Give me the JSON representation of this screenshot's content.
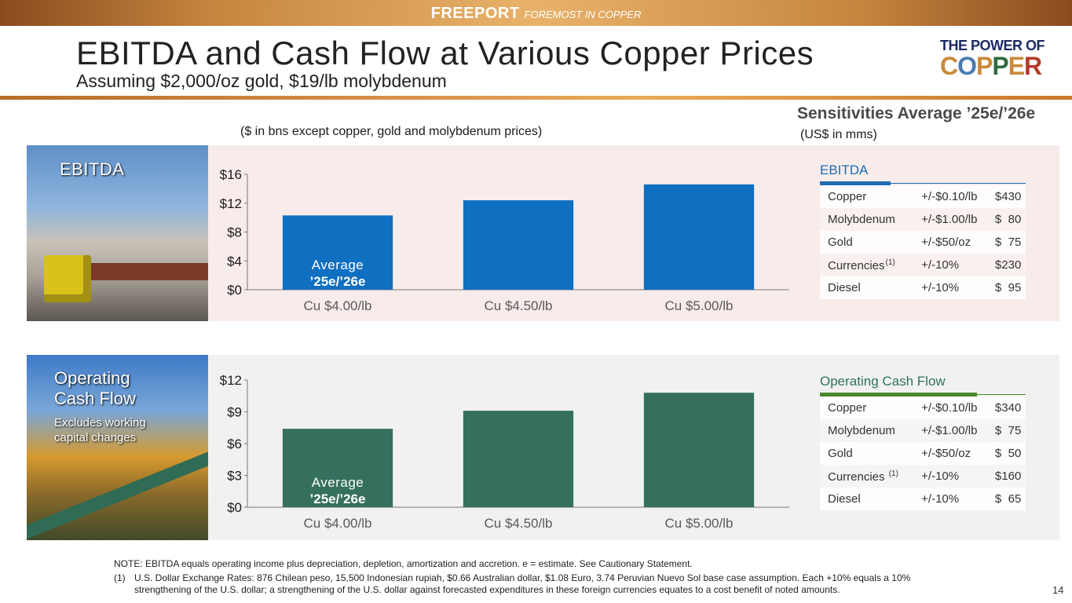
{
  "header": {
    "brand_name": "FREEPORT",
    "brand_tagline": "FOREMOST IN COPPER",
    "title": "EBITDA and Cash Flow at Various Copper Prices",
    "subtitle": "Assuming $2,000/oz gold, $19/lb molybdenum",
    "logo_line1": "THE POWER OF",
    "logo_line2": "COPPER"
  },
  "chart_note": "($ in bns except copper, gold and molybdenum prices)",
  "sensitivities": {
    "title": "Sensitivities Average ’25e/’26e",
    "unit": "(US$ in mms)",
    "ebitda": {
      "heading": "EBITDA",
      "rows": [
        {
          "item": "Copper",
          "change": "+/-$0.10/lb",
          "value": "$430"
        },
        {
          "item": "Molybdenum",
          "change": "+/-$1.00/lb",
          "value": "$  80"
        },
        {
          "item": "Gold",
          "change": "+/-$50/oz",
          "value": "$  75"
        },
        {
          "item": "Currencies",
          "sup": "(1)",
          "change": "+/-10%",
          "value": "$230"
        },
        {
          "item": "Diesel",
          "change": "+/-10%",
          "value": "$  95"
        }
      ]
    },
    "ocf": {
      "heading": "Operating Cash Flow",
      "rows": [
        {
          "item": "Copper",
          "change": "+/-$0.10/lb",
          "value": "$340"
        },
        {
          "item": "Molybdenum",
          "change": "+/-$1.00/lb",
          "value": "$  75"
        },
        {
          "item": "Gold",
          "change": "+/-$50/oz",
          "value": "$  50"
        },
        {
          "item": "Currencies ",
          "sup": "(1)",
          "change": "+/-10%",
          "value": "$160"
        },
        {
          "item": "Diesel",
          "change": "+/-10%",
          "value": "$  65"
        }
      ]
    }
  },
  "panels": {
    "ebitda_label": "EBITDA",
    "ocf_label_line1": "Operating",
    "ocf_label_line2": "Cash Flow",
    "ocf_sub_line1": "Excludes working",
    "ocf_sub_line2": "capital changes"
  },
  "chart_data": [
    {
      "type": "bar",
      "categories": [
        "Cu $4.00/lb",
        "Cu $4.50/lb",
        "Cu $5.00/lb"
      ],
      "values": [
        10.3,
        12.4,
        14.6
      ],
      "ylim": [
        0,
        16
      ],
      "yticks": [
        0,
        4,
        8,
        12,
        16
      ],
      "ytick_labels": [
        "$0",
        "$4",
        "$8",
        "$12",
        "$16"
      ],
      "bar_color": "#0f6fc1",
      "annotation_line1": "Average",
      "annotation_line2": "’25e/’26e"
    },
    {
      "type": "bar",
      "categories": [
        "Cu $4.00/lb",
        "Cu $4.50/lb",
        "Cu $5.00/lb"
      ],
      "values": [
        7.4,
        9.1,
        10.8
      ],
      "ylim": [
        0,
        12
      ],
      "yticks": [
        0,
        3,
        6,
        9,
        12
      ],
      "ytick_labels": [
        "$0",
        "$3",
        "$6",
        "$9",
        "$12"
      ],
      "bar_color": "#35705f",
      "annotation_line1": "Average",
      "annotation_line2": "’25e/’26e"
    }
  ],
  "footnotes": {
    "note": "NOTE: EBITDA equals operating income plus depreciation, depletion, amortization and accretion. e = estimate. See Cautionary Statement.",
    "fn1_num": "(1)",
    "fn1_text": "U.S. Dollar Exchange Rates: 876 Chilean peso, 15,500 Indonesian rupiah, $0.66 Australian dollar, $1.08 Euro, 3.74 Peruvian Nuevo Sol base case assumption. Each +10% equals a 10% strengthening of the U.S. dollar; a strengthening of the U.S. dollar against forecasted expenditures in these foreign currencies equates to a cost benefit of noted amounts."
  },
  "page_number": "14"
}
